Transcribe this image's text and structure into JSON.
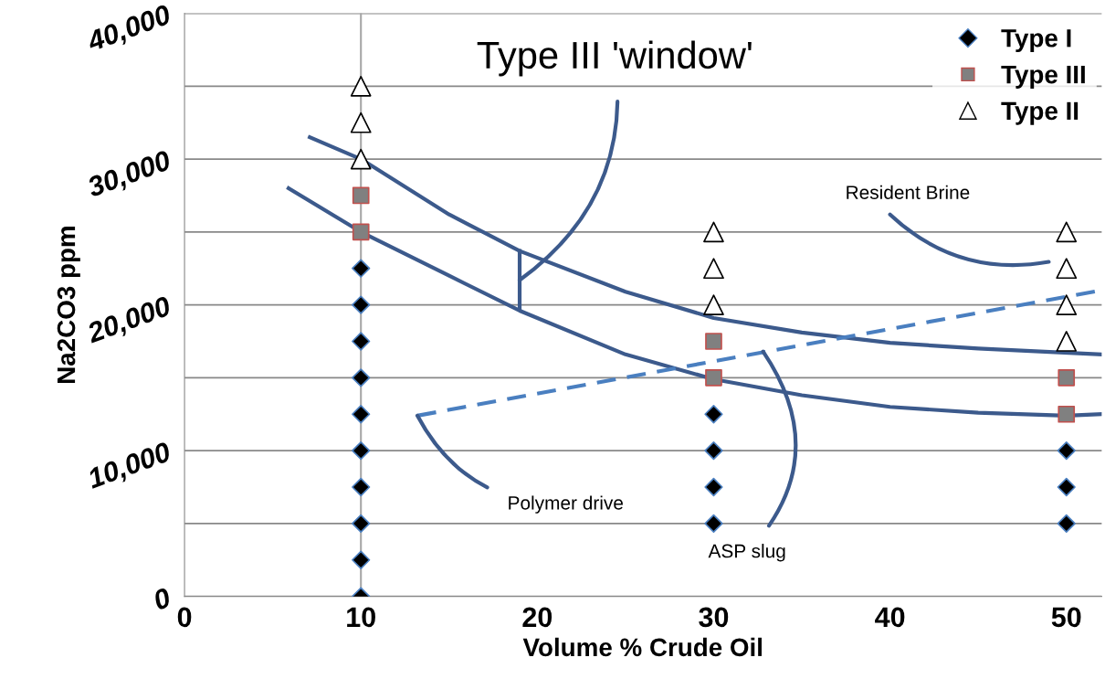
{
  "chart_data": {
    "type": "scatter",
    "xlabel": "Volume % Crude Oil",
    "ylabel": "Na2CO3 ppm",
    "xlim": [
      0,
      52
    ],
    "xticks": [
      0,
      10,
      20,
      30,
      40,
      50
    ],
    "ylim": [
      0,
      40000
    ],
    "yticks": [
      {
        "value": 0,
        "label": "0"
      },
      {
        "value": 5000,
        "label": null
      },
      {
        "value": 10000,
        "label": "10,000"
      },
      {
        "value": 15000,
        "label": null
      },
      {
        "value": 20000,
        "label": "20,000"
      },
      {
        "value": 25000,
        "label": null
      },
      {
        "value": 30000,
        "label": "30,000"
      },
      {
        "value": 35000,
        "label": null
      },
      {
        "value": 40000,
        "label": "40,000"
      }
    ],
    "grid": "y",
    "legend": "top right",
    "ref_lines": [
      {
        "axis": "x",
        "value": 10,
        "color": "#a6a6a6"
      }
    ],
    "series": [
      {
        "name": "Type I",
        "color": "#000000",
        "marker": "diamond",
        "x": [
          10,
          10,
          10,
          10,
          10,
          10,
          10,
          10,
          10,
          10,
          30,
          30,
          30,
          30,
          50,
          50,
          50
        ],
        "values": [
          0,
          2500,
          5000,
          7500,
          10000,
          12500,
          15000,
          17500,
          20000,
          22500,
          5000,
          7500,
          10000,
          12500,
          5000,
          7500,
          10000
        ]
      },
      {
        "name": "Type III",
        "color": "#808080",
        "marker": "square",
        "x": [
          10,
          10,
          30,
          30,
          50,
          50
        ],
        "values": [
          25000,
          27500,
          15000,
          17500,
          12500,
          15000
        ]
      },
      {
        "name": "Type II",
        "color": "#ffffff",
        "marker": "triangle",
        "x": [
          10,
          10,
          10,
          30,
          30,
          30,
          50,
          50,
          50,
          50
        ],
        "values": [
          30000,
          32500,
          35000,
          20000,
          22500,
          25000,
          17500,
          20000,
          22500,
          25000
        ]
      },
      {
        "type": "line",
        "color": "#3c5a8c",
        "marker": "none",
        "line_style": "solid",
        "x": [
          7.1,
          10,
          15,
          19,
          25,
          30,
          35,
          40,
          45,
          52
        ],
        "values": [
          31500,
          30000,
          26200,
          23700,
          20900,
          19100,
          18100,
          17400,
          17000,
          16600
        ]
      },
      {
        "type": "line",
        "color": "#3c5a8c",
        "marker": "none",
        "line_style": "solid",
        "x": [
          5.9,
          10,
          15,
          19,
          25,
          30,
          35,
          40,
          45,
          50,
          52
        ],
        "values": [
          28000,
          25000,
          22000,
          19600,
          16600,
          14900,
          13800,
          13000,
          12600,
          12400,
          12500
        ]
      },
      {
        "type": "line",
        "color": "#3c5a8c",
        "marker": "none",
        "line_style": "solid",
        "x": [
          19,
          19
        ],
        "values": [
          19700,
          23700
        ]
      },
      {
        "type": "line",
        "color": "#4a7fc0",
        "marker": "none",
        "line_style": "dashed",
        "x": [
          13.2,
          52
        ],
        "values": [
          12400,
          21000
        ]
      }
    ],
    "annotations": [
      {
        "text": "Type III 'window'",
        "x": 19,
        "y": 21700
      },
      "Resident Brine",
      {
        "text": "Polymer drive",
        "x": 13.2,
        "y": 12400
      },
      {
        "text": "ASP slug",
        "x": 32.8,
        "y": 16800
      }
    ]
  }
}
